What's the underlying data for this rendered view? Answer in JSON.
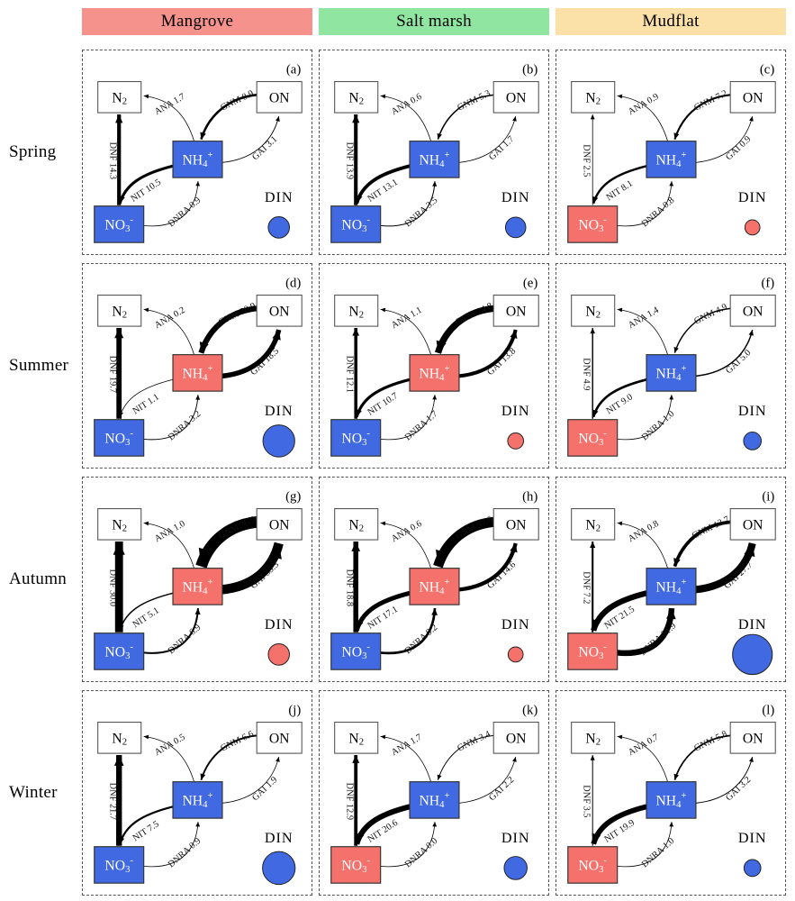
{
  "figure": {
    "row_labels": [
      "Spring",
      "Summer",
      "Autumn",
      "Winter"
    ],
    "column_headers": [
      {
        "label": "Mangrove",
        "color": "#F5928B"
      },
      {
        "label": "Salt marsh",
        "color": "#90E6A0"
      },
      {
        "label": "Mudflat",
        "color": "#FBE0A8"
      }
    ],
    "node_labels": {
      "n2": "N2",
      "on": "ON",
      "nh4": "NH4+",
      "no3": "NO3-",
      "din": "DIN"
    },
    "process_names": [
      "ANA",
      "GNM",
      "DNF",
      "NIT",
      "DNRA",
      "GAI"
    ],
    "colors": {
      "blue": "#4169E1",
      "red": "#F4716C",
      "arrow": "#000000",
      "box_border": "#333333",
      "white_box_border": "#555555"
    },
    "panels": [
      {
        "letter": "(a)",
        "season": "Spring",
        "habitat": "Mangrove",
        "fluxes": {
          "ANA": "1.7",
          "GNM": "8.9",
          "DNF": "14.3",
          "NIT": "10.5",
          "DNRA": "0.9",
          "GAI": "3.1"
        },
        "nh4_color": "blue",
        "no3_color": "blue",
        "din_color": "blue",
        "din_diameter": 24
      },
      {
        "letter": "(b)",
        "season": "Spring",
        "habitat": "Salt marsh",
        "fluxes": {
          "ANA": "0.6",
          "GNM": "5.3",
          "DNF": "13.9",
          "NIT": "13.1",
          "DNRA": "3.5",
          "GAI": "1.7"
        },
        "nh4_color": "blue",
        "no3_color": "blue",
        "din_color": "blue",
        "din_diameter": 23
      },
      {
        "letter": "(c)",
        "season": "Spring",
        "habitat": "Mudflat",
        "fluxes": {
          "ANA": "0.9",
          "GNM": "7.2",
          "DNF": "2.5",
          "NIT": "8.1",
          "DNRA": "0.8",
          "GAI": "0.9"
        },
        "nh4_color": "blue",
        "no3_color": "red",
        "din_color": "red",
        "din_diameter": 17
      },
      {
        "letter": "(d)",
        "season": "Summer",
        "habitat": "Mangrove",
        "fluxes": {
          "ANA": "0.2",
          "GNM": "20.9",
          "DNF": "19.7",
          "NIT": "1.1",
          "DNRA": "3.2",
          "GAI": "18.5"
        },
        "nh4_color": "red",
        "no3_color": "blue",
        "din_color": "blue",
        "din_diameter": 36
      },
      {
        "letter": "(e)",
        "season": "Summer",
        "habitat": "Salt marsh",
        "fluxes": {
          "ANA": "1.1",
          "GNM": "24.8",
          "DNF": "12.1",
          "NIT": "10.7",
          "DNRA": "1.7",
          "GAI": "13.8"
        },
        "nh4_color": "red",
        "no3_color": "blue",
        "din_color": "red",
        "din_diameter": 18
      },
      {
        "letter": "(f)",
        "season": "Summer",
        "habitat": "Mudflat",
        "fluxes": {
          "ANA": "1.4",
          "GNM": "4.9",
          "DNF": "4.9",
          "NIT": "9.0",
          "DNRA": "1.0",
          "GAI": "5.0"
        },
        "nh4_color": "blue",
        "no3_color": "red",
        "din_color": "blue",
        "din_diameter": 20
      },
      {
        "letter": "(g)",
        "season": "Autumn",
        "habitat": "Mangrove",
        "fluxes": {
          "ANA": "1.0",
          "GNM": "76.9",
          "DNF": "30.0",
          "NIT": "5.1",
          "DNRA": "6.9",
          "GAI": "35.3"
        },
        "nh4_color": "red",
        "no3_color": "blue",
        "din_color": "red",
        "din_diameter": 24
      },
      {
        "letter": "(h)",
        "season": "Autumn",
        "habitat": "Salt marsh",
        "fluxes": {
          "ANA": "0.6",
          "GNM": "37.6",
          "DNF": "18.8",
          "NIT": "17.1",
          "DNRA": "9.2",
          "GAI": "14.6"
        },
        "nh4_color": "red",
        "no3_color": "blue",
        "din_color": "red",
        "din_diameter": 17
      },
      {
        "letter": "(i)",
        "season": "Autumn",
        "habitat": "Mudflat",
        "fluxes": {
          "ANA": "0.8",
          "GNM": "12.7",
          "DNF": "7.2",
          "NIT": "21.5",
          "DNRA": "21.9",
          "GAI": "27.7"
        },
        "nh4_color": "blue",
        "no3_color": "red",
        "din_color": "blue",
        "din_diameter": 45
      },
      {
        "letter": "(j)",
        "season": "Winter",
        "habitat": "Mangrove",
        "fluxes": {
          "ANA": "0.5",
          "GNM": "6.6",
          "DNF": "21.7",
          "NIT": "7.5",
          "DNRA": "0.9",
          "GAI": "1.9"
        },
        "nh4_color": "blue",
        "no3_color": "blue",
        "din_color": "blue",
        "din_diameter": 37
      },
      {
        "letter": "(k)",
        "season": "Winter",
        "habitat": "Salt marsh",
        "fluxes": {
          "ANA": "1.7",
          "GNM": "3.4",
          "DNF": "12.9",
          "NIT": "20.6",
          "DNRA": "0.0",
          "GAI": "2.2"
        },
        "nh4_color": "blue",
        "no3_color": "red",
        "din_color": "blue",
        "din_diameter": 26
      },
      {
        "letter": "(l)",
        "season": "Winter",
        "habitat": "Mudflat",
        "fluxes": {
          "ANA": "0.7",
          "GNM": "5.8",
          "DNF": "3.5",
          "NIT": "19.9",
          "DNRA": "1.0",
          "GAI": "3.2"
        },
        "nh4_color": "blue",
        "no3_color": "red",
        "din_color": "blue",
        "din_diameter": 19
      }
    ]
  }
}
